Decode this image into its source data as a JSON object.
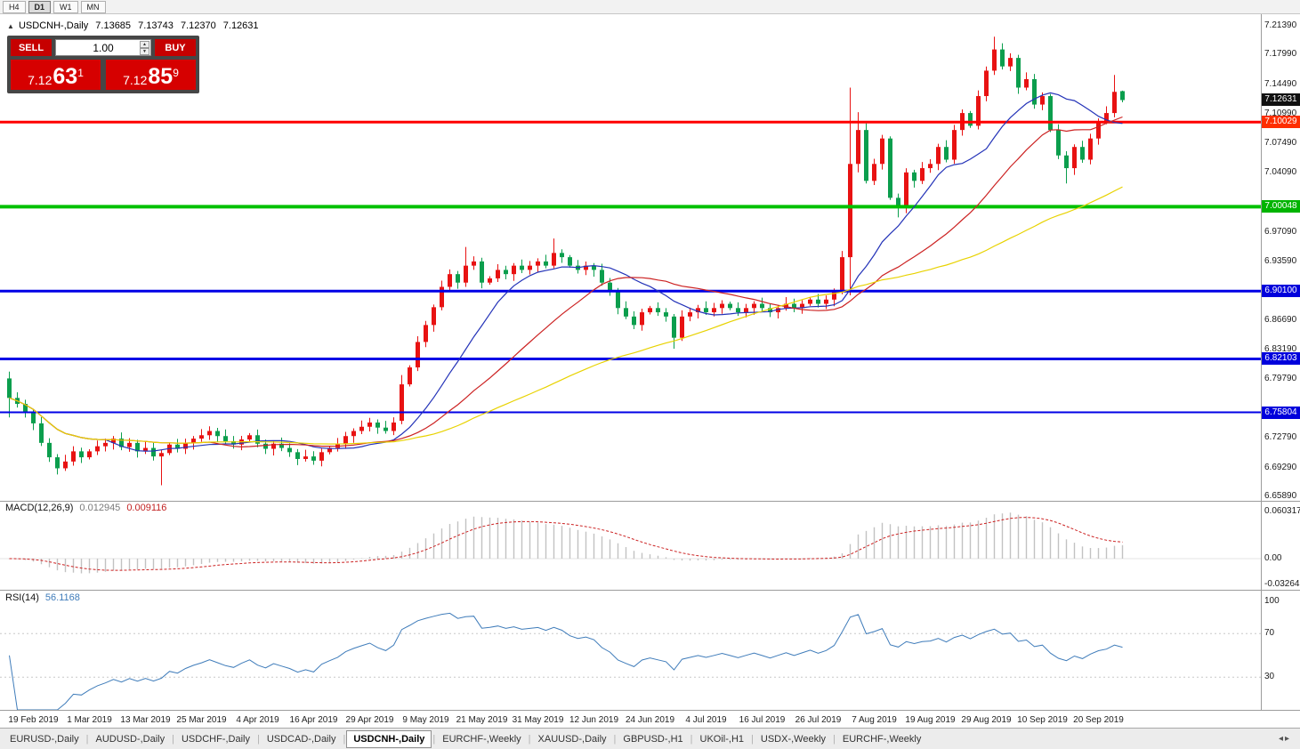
{
  "toolbar": {
    "periods": [
      "H4",
      "D1",
      "W1",
      "MN"
    ],
    "active": "D1"
  },
  "icons": {
    "collapse": "▲",
    "spin_up": "▲",
    "spin_down": "▼",
    "tab_scroll": "◂▸"
  },
  "chart_header": {
    "symbol": "USDCNH-,Daily",
    "open": "7.13685",
    "high": "7.13743",
    "low": "7.12370",
    "close": "7.12631"
  },
  "trade_panel": {
    "sell_label": "SELL",
    "buy_label": "BUY",
    "volume": "1.00",
    "sell_price": {
      "base": "7.12",
      "pips": "63",
      "pt": "1"
    },
    "buy_price": {
      "base": "7.12",
      "pips": "85",
      "pt": "9"
    },
    "button_color": "#c60000",
    "price_bg": "#d60000"
  },
  "price_axis": {
    "ticks": [
      "7.21390",
      "7.17990",
      "7.14490",
      "7.10990",
      "7.07490",
      "7.04090",
      "6.97090",
      "6.93590",
      "6.86690",
      "6.83190",
      "6.79790",
      "6.72790",
      "6.69290",
      "6.65890"
    ],
    "badges": [
      {
        "value": "7.12631",
        "bg": "#111111"
      },
      {
        "value": "7.10029",
        "bg": "#fe2e00"
      },
      {
        "value": "7.00048",
        "bg": "#00b400"
      },
      {
        "value": "6.90100",
        "bg": "#0000dc"
      },
      {
        "value": "6.82103",
        "bg": "#0000dc"
      },
      {
        "value": "6.75804",
        "bg": "#0000dc"
      }
    ]
  },
  "hlines": [
    {
      "price": 7.10029,
      "color": "#ff0000",
      "width": 3
    },
    {
      "price": 7.00048,
      "color": "#00c000",
      "width": 4
    },
    {
      "price": 6.901,
      "color": "#0000e6",
      "width": 3
    },
    {
      "price": 6.82103,
      "color": "#0000e6",
      "width": 3
    },
    {
      "price": 6.75804,
      "color": "#0000e6",
      "width": 2
    }
  ],
  "macd_panel": {
    "label": "MACD(12,26,9)",
    "value_main": "0.012945",
    "value_signal": "0.009116",
    "axis": [
      "0.060317",
      "0.00",
      "-0.032648"
    ]
  },
  "rsi_panel": {
    "label": "RSI(14)",
    "value": "56.1168",
    "axis": [
      "100",
      "70",
      "30"
    ],
    "levels": [
      70,
      30
    ]
  },
  "date_axis": [
    "19 Feb 2019",
    "1 Mar 2019",
    "13 Mar 2019",
    "25 Mar 2019",
    "4 Apr 2019",
    "16 Apr 2019",
    "29 Apr 2019",
    "9 May 2019",
    "21 May 2019",
    "31 May 2019",
    "12 Jun 2019",
    "24 Jun 2019",
    "4 Jul 2019",
    "16 Jul 2019",
    "26 Jul 2019",
    "7 Aug 2019",
    "19 Aug 2019",
    "29 Aug 2019",
    "10 Sep 2019",
    "20 Sep 2019"
  ],
  "bottom_tabs": {
    "active_index": 4,
    "tabs": [
      "EURUSD-,Daily",
      "AUDUSD-,Daily",
      "USDCHF-,Daily",
      "USDCAD-,Daily",
      "USDCNH-,Daily",
      "EURCHF-,Weekly",
      "XAUUSD-,Daily",
      "GBPUSD-,H1",
      "UKOil-,H1",
      "USDX-,Weekly",
      "EURCHF-,Weekly"
    ]
  },
  "chart_data": {
    "type": "candlestick",
    "symbol": "USDCNH-",
    "timeframe": "Daily",
    "price_range": {
      "top": 7.2139,
      "bottom": 6.6589
    },
    "up_color": "#e81212",
    "down_color": "#0b9e4d",
    "closes": [
      6.775,
      6.768,
      6.758,
      6.745,
      6.722,
      6.705,
      6.692,
      6.7,
      6.712,
      6.705,
      6.712,
      6.718,
      6.722,
      6.727,
      6.717,
      6.722,
      6.712,
      6.716,
      6.706,
      6.71,
      6.72,
      6.715,
      6.722,
      6.727,
      6.731,
      6.736,
      6.73,
      6.724,
      6.72,
      6.726,
      6.731,
      6.721,
      6.715,
      6.721,
      6.716,
      6.711,
      6.703,
      6.706,
      6.701,
      6.711,
      6.716,
      6.721,
      6.73,
      6.736,
      6.741,
      6.746,
      6.74,
      6.736,
      6.746,
      6.791,
      6.811,
      6.841,
      6.861,
      6.882,
      6.906,
      6.921,
      6.911,
      6.931,
      6.936,
      6.911,
      6.916,
      6.926,
      6.921,
      6.931,
      6.926,
      6.931,
      6.936,
      6.931,
      6.946,
      6.941,
      6.931,
      6.926,
      6.931,
      6.926,
      6.911,
      6.901,
      6.881,
      6.871,
      6.861,
      6.876,
      6.881,
      6.876,
      6.871,
      6.846,
      6.871,
      6.876,
      6.881,
      6.876,
      6.881,
      6.886,
      6.881,
      6.876,
      6.881,
      6.886,
      6.881,
      6.876,
      6.881,
      6.886,
      6.881,
      6.886,
      6.891,
      6.886,
      6.891,
      6.901,
      6.941,
      7.051,
      7.091,
      7.031,
      7.051,
      7.081,
      7.011,
      6.999,
      7.041,
      7.031,
      7.046,
      7.051,
      7.071,
      7.056,
      7.091,
      7.111,
      7.096,
      7.131,
      7.161,
      7.186,
      7.166,
      7.176,
      7.141,
      7.151,
      7.121,
      7.131,
      7.091,
      7.061,
      7.046,
      7.071,
      7.056,
      7.081,
      7.101,
      7.111,
      7.136,
      7.12631
    ],
    "overrides": {
      "0": [
        6.798,
        6.806,
        6.752,
        6.775
      ],
      "19": [
        6.706,
        6.714,
        6.672,
        6.71
      ],
      "49": [
        6.748,
        6.802,
        6.744,
        6.791
      ],
      "57": [
        6.911,
        6.953,
        6.906,
        6.931
      ],
      "68": [
        6.931,
        6.963,
        6.928,
        6.946
      ],
      "83": [
        6.871,
        6.874,
        6.833,
        6.846
      ],
      "105": [
        6.941,
        7.141,
        6.896,
        7.051
      ],
      "106": [
        7.051,
        7.112,
        7.041,
        7.091
      ],
      "111": [
        7.011,
        7.016,
        6.988,
        6.999
      ],
      "123": [
        7.161,
        7.201,
        7.156,
        7.186
      ],
      "132": [
        7.061,
        7.066,
        7.028,
        7.046
      ],
      "138": [
        7.111,
        7.156,
        7.106,
        7.136
      ],
      "139": [
        7.13685,
        7.13743,
        7.1237,
        7.12631
      ]
    },
    "moving_averages": [
      {
        "period": 13,
        "color": "#2433b8"
      },
      {
        "period": 26,
        "color": "#cc2222"
      },
      {
        "period": 52,
        "color": "#e8d200"
      }
    ],
    "macd": {
      "fast": 12,
      "slow": 26,
      "signal": 9,
      "range": [
        -0.032648,
        0.060317
      ],
      "histogram_color": "#c2c2c2",
      "signal_color": "#cc2222"
    },
    "rsi": {
      "period": 14,
      "range": [
        0,
        100
      ],
      "color": "#3f7cba"
    }
  }
}
